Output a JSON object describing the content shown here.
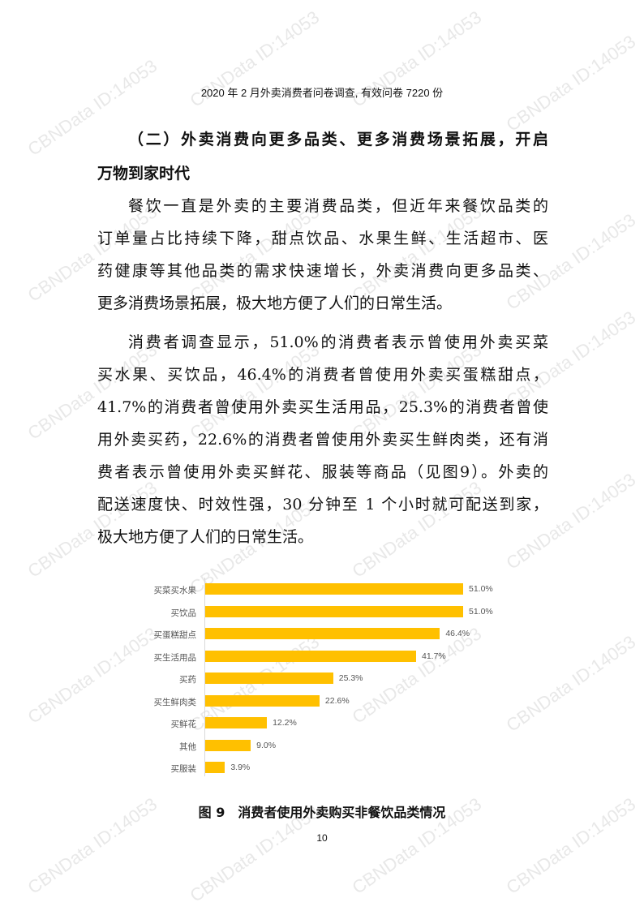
{
  "watermark": "CBNData ID:14053",
  "source_note": "2020 年 2 月外卖消费者问卷调查, 有效问卷 7220 份",
  "lines": [
    "（二）外卖消费向更多品类、更多消费场景拓展，开启",
    "万物到家时代",
    "餐饮一直是外卖的主要消费品类，但近年来餐饮品类的",
    "订单量占比持续下降，甜点饮品、水果生鲜、生活超市、医",
    "药健康等其他品类的需求快速增长，外卖消费向更多品类、",
    "更多消费场景拓展，极大地方便了人们的日常生活。",
    "消费者调查显示，51.0%的消费者表示曾使用外卖买菜",
    "买水果、买饮品，46.4%的消费者曾使用外卖买蛋糕甜点，",
    "41.7%的消费者曾使用外卖买生活用品，25.3%的消费者曾使",
    "用外卖买药，22.6%的消费者曾使用外卖买生鲜肉类，还有消",
    "费者表示曾使用外卖买鲜花、服装等商品（见图9）。外卖的",
    "配送速度快、时效性强，30 分钟至 1 个小时就可配送到家，",
    "极大地方便了人们的日常生活。"
  ],
  "chart_data": {
    "type": "bar",
    "orientation": "horizontal",
    "categories": [
      "买菜买水果",
      "买饮品",
      "买蛋糕甜点",
      "买生活用品",
      "买药",
      "买生鲜肉类",
      "买鲜花",
      "其他",
      "买服装"
    ],
    "values": [
      51.0,
      51.0,
      46.4,
      41.7,
      25.3,
      22.6,
      12.2,
      9.0,
      3.9
    ],
    "labels": [
      "51.0%",
      "51.0%",
      "46.4%",
      "41.7%",
      "25.3%",
      "22.6%",
      "12.2%",
      "9.0%",
      "3.9%"
    ],
    "unit": "%",
    "color": "#FFC000",
    "grid": false
  },
  "caption": "图 9　消费者使用外卖购买非餐饮品类情况",
  "page_number": "10"
}
